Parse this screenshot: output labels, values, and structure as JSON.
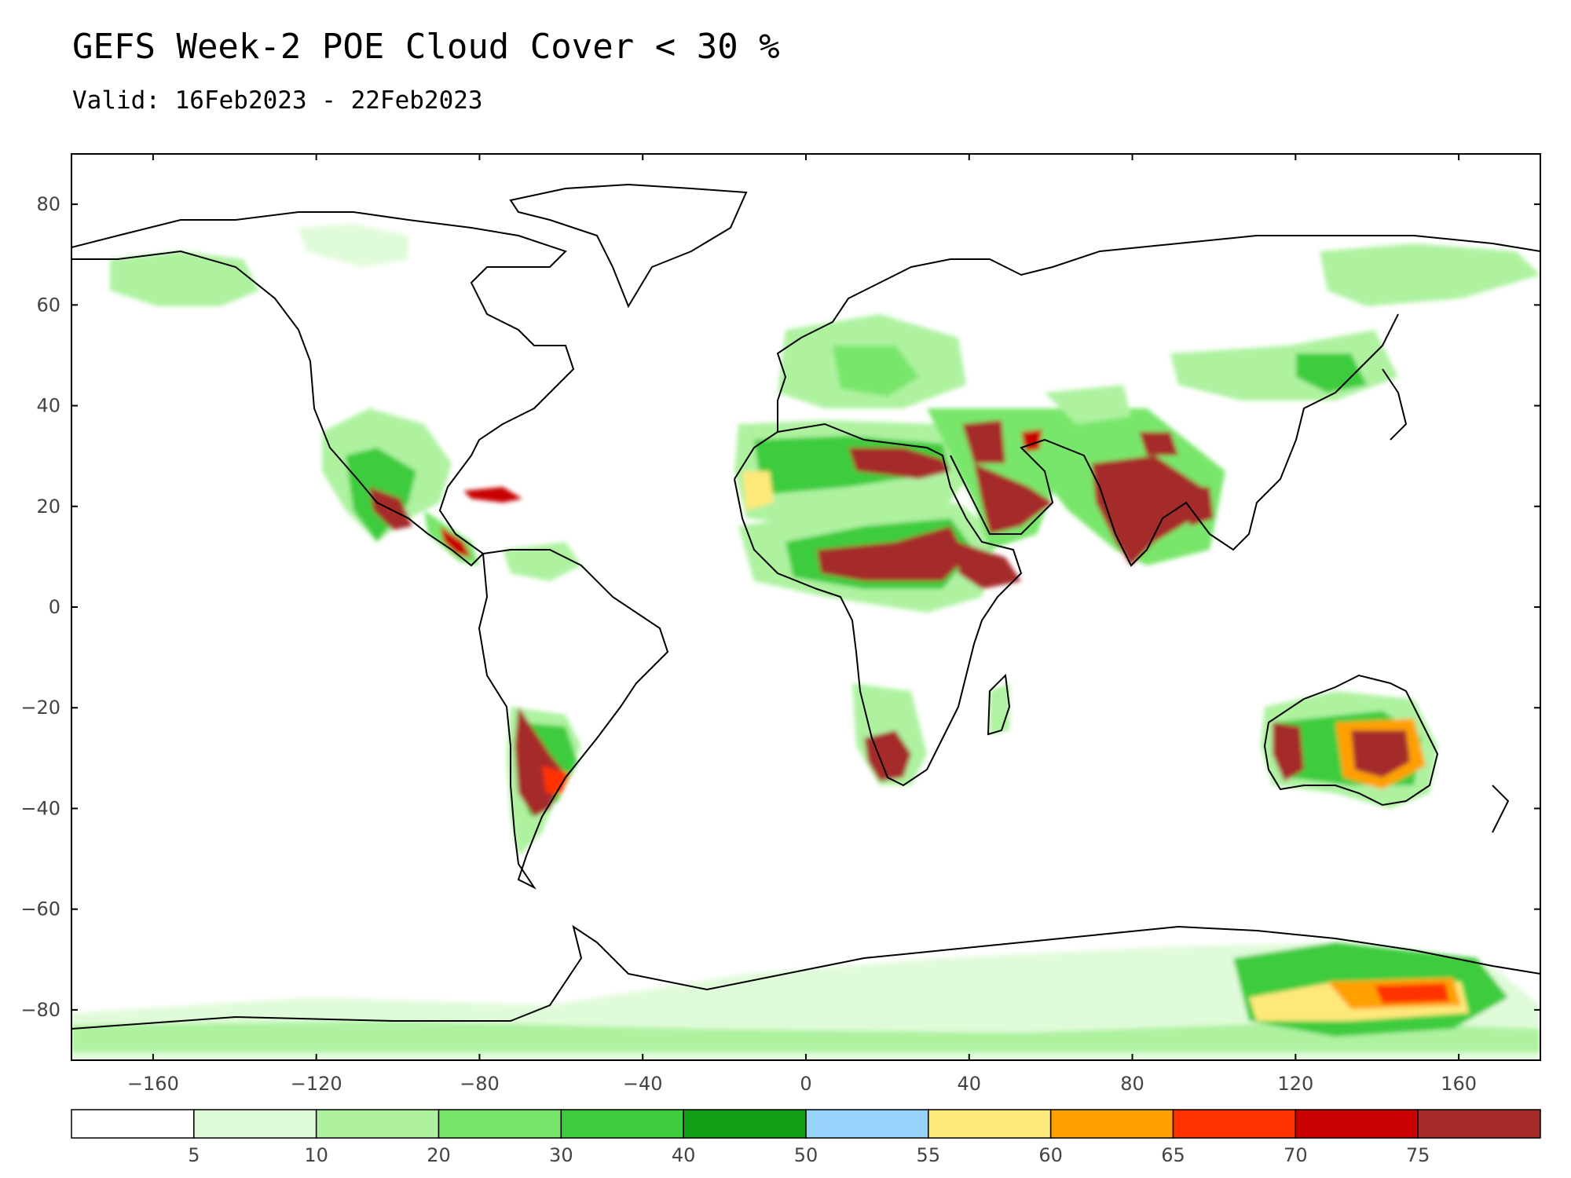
{
  "title": "GEFS Week-2 POE Cloud Cover < 30 %",
  "subtitle": "Valid: 16Feb2023 - 22Feb2023",
  "map": {
    "projection": "equirectangular",
    "lon_range": [
      -180,
      180
    ],
    "lat_range": [
      -90,
      90
    ],
    "x_ticks": [
      -160,
      -120,
      -80,
      -40,
      0,
      40,
      80,
      120,
      160
    ],
    "x_tick_labels": [
      "−160",
      "−120",
      "−80",
      "−40",
      "0",
      "40",
      "80",
      "120",
      "160"
    ],
    "y_ticks": [
      80,
      60,
      40,
      20,
      0,
      -20,
      -40,
      -60,
      -80
    ],
    "y_tick_labels": [
      "80",
      "60",
      "40",
      "20",
      "0",
      "−20",
      "−40",
      "−60",
      "−80"
    ],
    "land_color": "#ffffff",
    "coast_color": "#000000"
  },
  "legend": {
    "colors": [
      "#ffffff",
      "#e0fbd9",
      "#aef2a0",
      "#78e66a",
      "#3ccc3c",
      "#0f9e14",
      "#96d2fa",
      "#ffe87a",
      "#ffa000",
      "#ff3200",
      "#c80000",
      "#a52a2a"
    ],
    "labels": [
      "5",
      "10",
      "20",
      "30",
      "40",
      "50",
      "55",
      "60",
      "65",
      "70",
      "75"
    ]
  },
  "probability_regions": [
    {
      "name": "Mexico / Central America",
      "level": 75
    },
    {
      "name": "Sahara belt",
      "level": 75
    },
    {
      "name": "Sahel",
      "level": 75
    },
    {
      "name": "Arabian Peninsula",
      "level": 75
    },
    {
      "name": "India",
      "level": 75
    },
    {
      "name": "Southern Africa (Namibia)",
      "level": 75
    },
    {
      "name": "Argentina / Chile",
      "level": 75
    },
    {
      "name": "Western Australia",
      "level": 75
    },
    {
      "name": "Eastern Australia",
      "level": 75
    },
    {
      "name": "East Antarctica",
      "level": 65
    }
  ]
}
